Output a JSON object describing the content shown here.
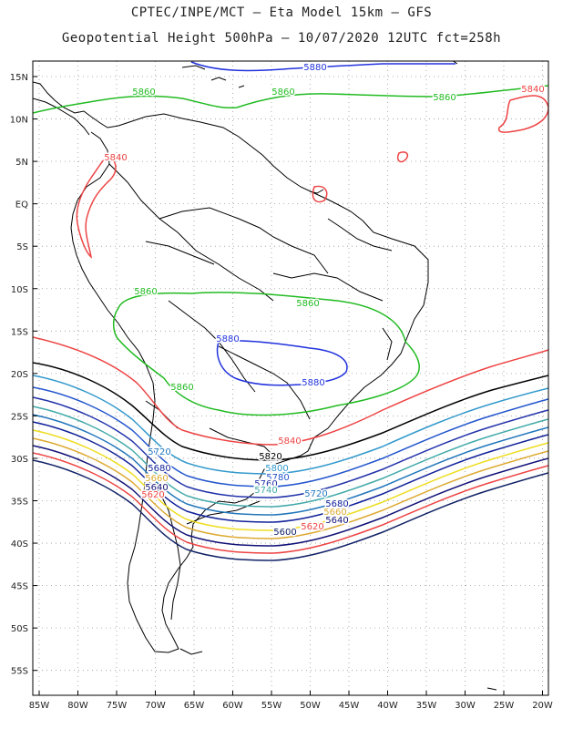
{
  "title_line1": "CPTEC/INPE/MCT –  Eta Model 15km – GFS",
  "title_line2": "Geopotential Height 500hPa – 10/07/2020 12UTC fct=258h",
  "lat_ticks": [
    "15N",
    "10N",
    "5N",
    "EQ",
    "5S",
    "10S",
    "15S",
    "20S",
    "25S",
    "30S",
    "35S",
    "40S",
    "45S",
    "50S",
    "55S"
  ],
  "lon_ticks": [
    "85W",
    "80W",
    "75W",
    "70W",
    "65W",
    "60W",
    "55W",
    "50W",
    "45W",
    "40W",
    "35W",
    "30W",
    "25W",
    "20W"
  ],
  "contour_labels": [
    {
      "text": "5880",
      "color": "#2233dd"
    },
    {
      "text": "5860",
      "color": "#22bb22"
    },
    {
      "text": "5860",
      "color": "#22bb22"
    },
    {
      "text": "5860",
      "color": "#22bb22"
    },
    {
      "text": "5840",
      "color": "#ee4444"
    },
    {
      "text": "5840",
      "color": "#ee4444"
    },
    {
      "text": "5860",
      "color": "#22bb22"
    },
    {
      "text": "5880",
      "color": "#2233dd"
    },
    {
      "text": "5880",
      "color": "#2233dd"
    },
    {
      "text": "5860",
      "color": "#22bb22"
    },
    {
      "text": "5860",
      "color": "#22bb22"
    },
    {
      "text": "5840",
      "color": "#ee4444"
    },
    {
      "text": "5820",
      "color": "#000000"
    },
    {
      "text": "5800",
      "color": "#3399cc"
    },
    {
      "text": "5780",
      "color": "#2255cc"
    },
    {
      "text": "5760",
      "color": "#2233aa"
    },
    {
      "text": "5740",
      "color": "#44aaaa"
    },
    {
      "text": "5720",
      "color": "#2277bb"
    },
    {
      "text": "5720",
      "color": "#2277bb"
    },
    {
      "text": "5680",
      "color": "#112299"
    },
    {
      "text": "5660",
      "color": "#ddaa33"
    },
    {
      "text": "5640",
      "color": "#111177"
    },
    {
      "text": "5620",
      "color": "#ee4444"
    },
    {
      "text": "5680",
      "color": "#112299"
    },
    {
      "text": "5660",
      "color": "#ddaa33"
    },
    {
      "text": "5640",
      "color": "#111177"
    },
    {
      "text": "5620",
      "color": "#ee4444"
    },
    {
      "text": "5600",
      "color": "#112266"
    }
  ]
}
